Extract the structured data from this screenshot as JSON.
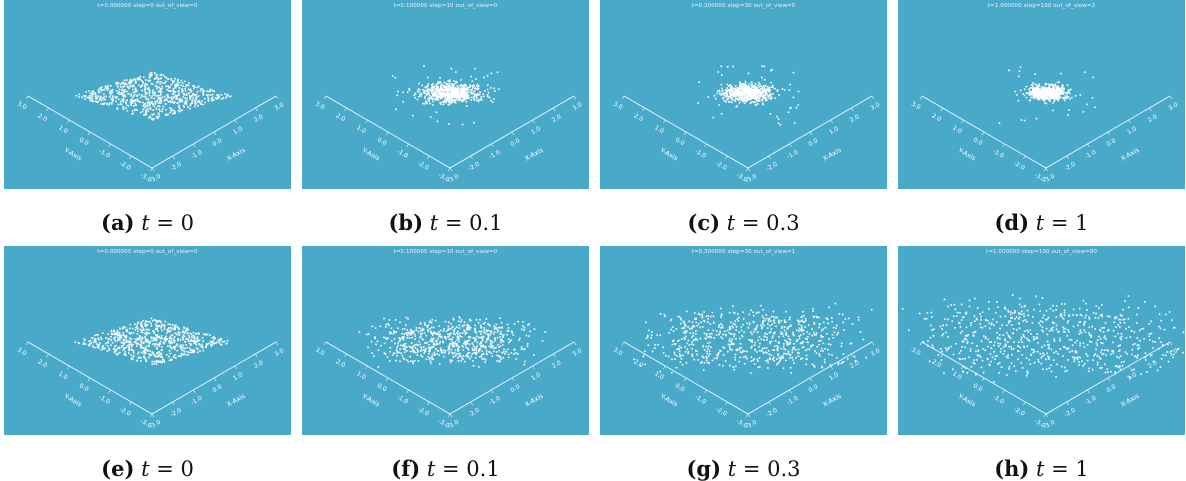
{
  "figure": {
    "panels": [
      {
        "label": "(a)",
        "math_var": "t",
        "math_value": "0",
        "status": "t=0.000000   step=0   out_of_view=0",
        "spread": 0.0,
        "cloud": "square"
      },
      {
        "label": "(b)",
        "math_var": "t",
        "math_value": "0.1",
        "status": "t=0.100000   step=10   out_of_view=0",
        "spread": 0.45,
        "cloud": "contract"
      },
      {
        "label": "(c)",
        "math_var": "t",
        "math_value": "0.3",
        "status": "t=0.300000   step=30   out_of_view=0",
        "spread": 0.7,
        "cloud": "contract"
      },
      {
        "label": "(d)",
        "math_var": "t",
        "math_value": "1",
        "status": "t=1.000000   step=100   out_of_view=2",
        "spread": 1.0,
        "cloud": "contract"
      },
      {
        "label": "(e)",
        "math_var": "t",
        "math_value": "0",
        "status": "t=0.000000   step=0   out_of_view=0",
        "spread": 0.0,
        "cloud": "square"
      },
      {
        "label": "(f)",
        "math_var": "t",
        "math_value": "0.1",
        "status": "t=0.100000   step=10   out_of_view=0",
        "spread": 0.35,
        "cloud": "expand"
      },
      {
        "label": "(g)",
        "math_var": "t",
        "math_value": "0.3",
        "status": "t=0.300000   step=30   out_of_view=1",
        "spread": 0.7,
        "cloud": "expand"
      },
      {
        "label": "(h)",
        "math_var": "t",
        "math_value": "1",
        "status": "t=1.000000   step=100   out_of_view=90",
        "spread": 1.0,
        "cloud": "expand"
      }
    ],
    "axes": {
      "x_label": "X-Axis",
      "y_label": "Y-Axis",
      "x_ticks": [
        "-3.0",
        "-2.0",
        "-1.0",
        "0.0",
        "1.0",
        "2.0",
        "3.0"
      ],
      "y_ticks": [
        "-3.0",
        "-2.0",
        "-1.0",
        "0.0",
        "1.0",
        "2.0",
        "3.0"
      ]
    },
    "colors": {
      "background": "#48a9c9",
      "points": "#ffffff",
      "axes": "#ffffff"
    }
  }
}
